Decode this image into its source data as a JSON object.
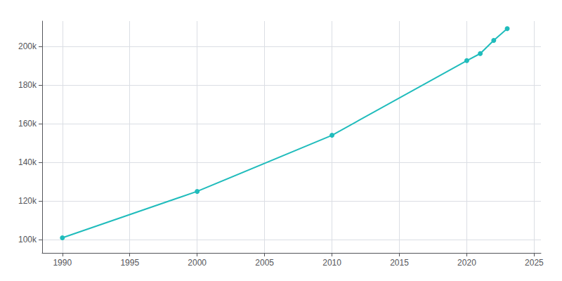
{
  "chart_data": {
    "type": "line",
    "x": [
      1990,
      2000,
      2010,
      2020,
      2021,
      2022,
      2023
    ],
    "values": [
      100814,
      124844,
      153888,
      192517,
      196185,
      202994,
      209073
    ],
    "color": "#20BCBC",
    "marker": "circle",
    "xlim": [
      1988.5,
      2025.5
    ],
    "ylim": [
      93000,
      213000
    ],
    "xticks": [
      1990,
      1995,
      2000,
      2005,
      2010,
      2015,
      2020,
      2025
    ],
    "yticks": [
      {
        "value": 100000,
        "label": "100k"
      },
      {
        "value": 120000,
        "label": "120k"
      },
      {
        "value": 140000,
        "label": "140k"
      },
      {
        "value": 160000,
        "label": "160k"
      },
      {
        "value": 180000,
        "label": "180k"
      },
      {
        "value": 200000,
        "label": "200k"
      }
    ],
    "grid": true
  }
}
